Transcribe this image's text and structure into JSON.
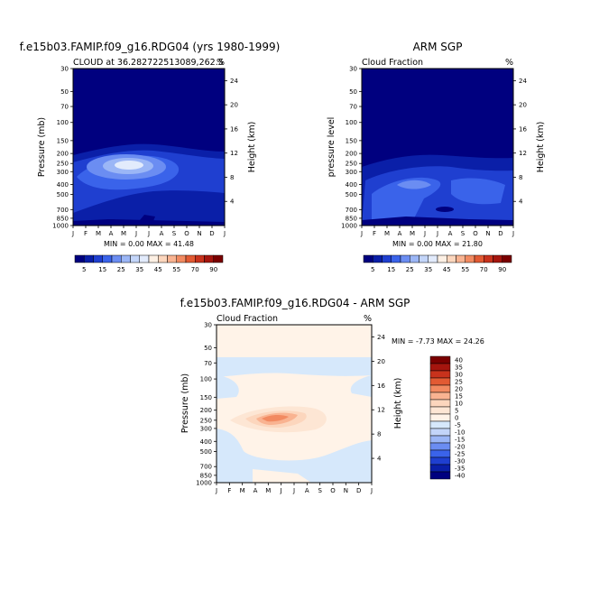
{
  "charts": [
    {
      "id": "model",
      "type": "heatmap",
      "title": "f.e15b03.FAMIP.f09_g16.RDG04 (yrs 1980-1999)",
      "left_label": "CLOUD at 36.282722513089,262.5",
      "right_label": "%",
      "ylabel": "Pressure (mb)",
      "y2label": "Height (km)",
      "stats": "MIN =    0.00 MAX =  41.48",
      "min": 0.0,
      "max": 41.48
    },
    {
      "id": "obs",
      "type": "heatmap",
      "title": "ARM SGP",
      "left_label": "Cloud Fraction",
      "right_label": "%",
      "ylabel": "pressure level",
      "y2label": "Height (km)",
      "stats": "MIN =    0.00 MAX =  21.80",
      "min": 0.0,
      "max": 21.8
    },
    {
      "id": "diff",
      "type": "heatmap",
      "title": "f.e15b03.FAMIP.f09_g16.RDG04 - ARM SGP",
      "left_label": "Cloud Fraction",
      "right_label": "%",
      "ylabel": "Pressure (mb)",
      "y2label": "Height (km)",
      "stats": "MIN =  -7.73 MAX =  24.26",
      "min": -7.73,
      "max": 24.26
    }
  ],
  "axes": {
    "months": [
      "J",
      "F",
      "M",
      "A",
      "M",
      "J",
      "J",
      "A",
      "S",
      "O",
      "N",
      "D",
      "J"
    ],
    "pressure_ticks": [
      "30",
      "50",
      "70",
      "100",
      "150",
      "200",
      "250",
      "300",
      "400",
      "500",
      "700",
      "850",
      "1000"
    ],
    "pressure_values": [
      30,
      50,
      70,
      100,
      150,
      200,
      250,
      300,
      400,
      500,
      700,
      850,
      1000
    ],
    "height_ticks": [
      "24",
      "20",
      "16",
      "12",
      "8",
      "4"
    ],
    "height_values": [
      24,
      20,
      16,
      12,
      8,
      4
    ]
  },
  "colorbar_abs": {
    "labels": [
      "5",
      "15",
      "25",
      "35",
      "45",
      "55",
      "70",
      "90"
    ],
    "colors": [
      "#00007f",
      "#0a1fa8",
      "#1f3fd0",
      "#3a63ea",
      "#6b8df2",
      "#9bb6f6",
      "#c3d5f9",
      "#e2ebfc",
      "#fdf0e4",
      "#fcd6bd",
      "#f9b391",
      "#f28a61",
      "#e25a33",
      "#c8321c",
      "#a5150e",
      "#7a0000"
    ]
  },
  "colorbar_diff": {
    "labels": [
      "40",
      "35",
      "30",
      "25",
      "20",
      "15",
      "10",
      "5",
      "0",
      "-5",
      "-10",
      "-15",
      "-20",
      "-25",
      "-30",
      "-35",
      "-40"
    ],
    "colors": [
      "#7a0000",
      "#a5150e",
      "#c8321c",
      "#e25a33",
      "#f28a61",
      "#f9b391",
      "#fcd6bd",
      "#fde6d4",
      "#fff3e8",
      "#d6e8fb",
      "#c3d5f9",
      "#9bb6f6",
      "#6b8df2",
      "#3a63ea",
      "#1f3fd0",
      "#0a1fa8",
      "#00007f"
    ]
  }
}
